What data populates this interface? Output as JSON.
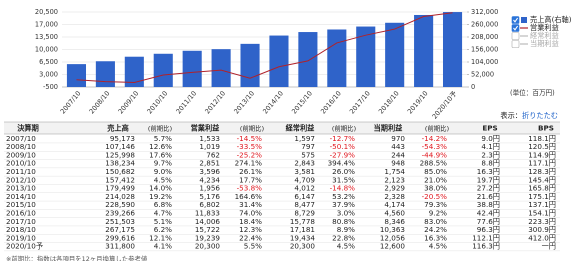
{
  "chart_data": {
    "type": "combo",
    "categories": [
      "2007/10",
      "2008/10",
      "2009/10",
      "2010/10",
      "2011/10",
      "2012/10",
      "2013/10",
      "2014/10",
      "2015/10",
      "2016/10",
      "2017/10",
      "2018/10",
      "2019/10",
      "2020/10予"
    ],
    "series": [
      {
        "name": "売上高(右軸)",
        "type": "bar",
        "axis": "y2",
        "color": "#2f63c9",
        "values": [
          95173,
          107146,
          125998,
          138234,
          150682,
          157412,
          179499,
          214028,
          228590,
          239266,
          251503,
          267175,
          299616,
          311800
        ]
      },
      {
        "name": "営業利益",
        "type": "line",
        "color": "#b0222a",
        "values": [
          1533,
          1019,
          762,
          2851,
          3596,
          4234,
          1956,
          5176,
          6802,
          11833,
          14006,
          15722,
          19239,
          20300
        ]
      }
    ],
    "hidden_series": [
      "経常利益",
      "当期利益"
    ],
    "ylim": [
      -500,
      20500
    ],
    "yticks": [
      {
        "value": 20500,
        "label": "20,500"
      },
      {
        "value": 17000,
        "label": "17,000"
      },
      {
        "value": 13500,
        "label": "13,500"
      },
      {
        "value": 10000,
        "label": "10,000"
      },
      {
        "value": 6500,
        "label": "6,500"
      },
      {
        "value": 3000,
        "label": "3,000"
      },
      {
        "value": -500,
        "label": "-500"
      }
    ],
    "y2lim": [
      0,
      312000
    ],
    "y2ticks": [
      {
        "value": 312000,
        "label": "312,000"
      },
      {
        "value": 260000,
        "label": "260,000"
      },
      {
        "value": 208000,
        "label": "208,000"
      },
      {
        "value": 156000,
        "label": "156,000"
      },
      {
        "value": 104000,
        "label": "104,000"
      },
      {
        "value": 52000,
        "label": "52,000"
      },
      0
    ],
    "grid": true,
    "unit": "(単位：百万円)"
  },
  "table": {
    "display_label": "表示：",
    "toggle": "折りたたむ",
    "header": [
      "決算期",
      "売上高",
      "(前期比)",
      "営業利益",
      "(前期比)",
      "経常利益",
      "(前期比)",
      "当期利益",
      "(前期比)",
      "EPS",
      "BPS"
    ],
    "rows": [
      [
        "2007/10",
        "95,173",
        "5.7%",
        "1,533",
        "-14.5%",
        "1,597",
        "-12.7%",
        "970",
        "-14.2%",
        "9.0円",
        "118.1円"
      ],
      [
        "2008/10",
        "107,146",
        "12.6%",
        "1,019",
        "-33.5%",
        "797",
        "-50.1%",
        "443",
        "-54.3%",
        "4.1円",
        "120.5円"
      ],
      [
        "2009/10",
        "125,998",
        "17.6%",
        "762",
        "-25.2%",
        "575",
        "-27.9%",
        "244",
        "-44.9%",
        "2.3円",
        "114.9円"
      ],
      [
        "2010/10",
        "138,234",
        "9.7%",
        "2,851",
        "274.1%",
        "2,843",
        "394.4%",
        "948",
        "288.5%",
        "8.8円",
        "117.1円"
      ],
      [
        "2011/10",
        "150,682",
        "9.0%",
        "3,596",
        "26.1%",
        "3,581",
        "26.0%",
        "1,754",
        "85.0%",
        "16.3円",
        "128.3円"
      ],
      [
        "2012/10",
        "157,412",
        "4.5%",
        "4,234",
        "17.7%",
        "4,709",
        "31.5%",
        "2,123",
        "21.0%",
        "19.7円",
        "145.4円"
      ],
      [
        "2013/10",
        "179,499",
        "14.0%",
        "1,956",
        "-53.8%",
        "4,012",
        "-14.8%",
        "2,929",
        "38.0%",
        "27.2円",
        "165.8円"
      ],
      [
        "2014/10",
        "214,028",
        "19.2%",
        "5,176",
        "164.6%",
        "6,147",
        "53.2%",
        "2,328",
        "-20.5%",
        "21.6円",
        "175.1円"
      ],
      [
        "2015/10",
        "228,590",
        "6.8%",
        "6,802",
        "31.4%",
        "8,477",
        "37.9%",
        "4,174",
        "79.3%",
        "38.8円",
        "137.1円"
      ],
      [
        "2016/10",
        "239,266",
        "4.7%",
        "11,833",
        "74.0%",
        "8,729",
        "3.0%",
        "4,560",
        "9.2%",
        "42.4円",
        "154.1円"
      ],
      [
        "2017/10",
        "251,503",
        "5.1%",
        "14,006",
        "18.4%",
        "15,778",
        "80.8%",
        "8,346",
        "83.0%",
        "77.6円",
        "223.3円"
      ],
      [
        "2018/10",
        "267,175",
        "6.2%",
        "15,722",
        "12.3%",
        "17,181",
        "8.9%",
        "10,363",
        "24.2%",
        "96.3円",
        "300.9円"
      ],
      [
        "2019/10",
        "299,616",
        "12.1%",
        "19,239",
        "22.4%",
        "19,434",
        "22.8%",
        "12,056",
        "16.3%",
        "112.1円",
        "412.0円"
      ],
      [
        "2020/10予",
        "311,800",
        "4.1%",
        "20,300",
        "5.5%",
        "20,300",
        "4.5%",
        "12,600",
        "4.5%",
        "116.3円",
        "一円"
      ]
    ],
    "note": "※前期比：指数は各項目を12ヶ月換算した参考値"
  }
}
